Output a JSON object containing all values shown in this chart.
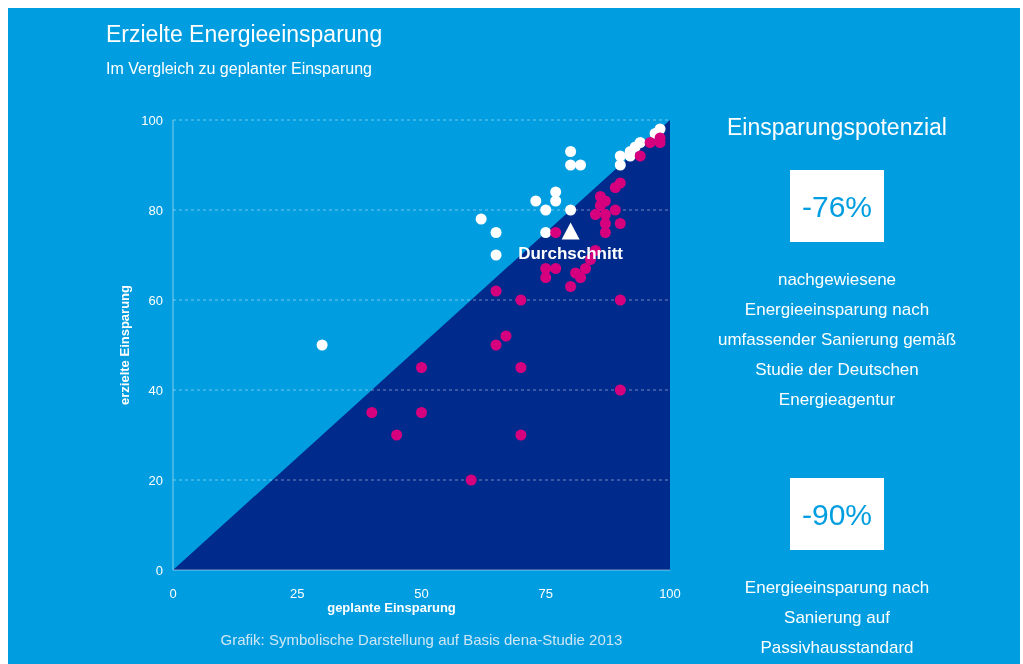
{
  "chart_data": [
    {
      "type": "scatter",
      "title": "Erzielte Energieeinsparung",
      "subtitle": "Im Vergleich zu geplanter Einsparung",
      "xlabel": "geplante Einsparung",
      "ylabel": "erzielte Einsparung",
      "xlim": [
        0,
        100
      ],
      "ylim": [
        0,
        100
      ],
      "xticks": [
        0,
        25,
        50,
        75,
        100
      ],
      "yticks": [
        0,
        20,
        40,
        60,
        80,
        100
      ],
      "grid": "y",
      "series": [
        {
          "type": "area",
          "color": "#002a8c",
          "x": [
            0,
            100
          ],
          "values": [
            0,
            100
          ]
        },
        {
          "color": "#ffffff",
          "marker": "circle",
          "x": [
            30,
            62,
            65,
            65,
            73,
            75,
            75,
            77,
            77,
            80,
            80,
            80,
            82,
            90,
            90,
            92,
            92,
            93,
            94,
            97,
            98
          ],
          "values": [
            50,
            78,
            75,
            70,
            82,
            80,
            75,
            84,
            82,
            80,
            93,
            90,
            90,
            90,
            92,
            92,
            93,
            94,
            95,
            97,
            98
          ]
        },
        {
          "color": "#d6007e",
          "marker": "circle",
          "x": [
            40,
            45,
            50,
            50,
            60,
            65,
            65,
            67,
            70,
            70,
            70,
            90,
            90,
            77,
            77,
            75,
            75,
            80,
            81,
            82,
            83,
            84,
            85,
            85,
            86,
            86,
            87,
            87,
            87,
            87,
            89,
            89,
            90,
            90,
            94,
            98,
            98,
            96
          ],
          "values": [
            35,
            30,
            45,
            35,
            20,
            62,
            50,
            52,
            60,
            45,
            30,
            60,
            40,
            75,
            67,
            67,
            65,
            63,
            66,
            65,
            67,
            69,
            71,
            79,
            83,
            81,
            82,
            79,
            77,
            75,
            80,
            85,
            86,
            77,
            92,
            96,
            95,
            95
          ]
        },
        {
          "name": "Durchschnitt",
          "color": "#ffffff",
          "marker": "triangle",
          "x": [
            80
          ],
          "values": [
            75
          ]
        }
      ],
      "annotations": [
        "Grafik: Symbolische Darstellung auf Basis dena-Studie 2013"
      ]
    },
    {
      "type": "other",
      "title": "Einsparungspotenzial",
      "annotations": [
        "-76%",
        "nachgewiesene Energieeinsparung nach umfassender Sanierung gemäß Studie der Deutschen Energieagentur",
        "-90%",
        "Energieeinsparung nach Sanierung auf Passivhausstandard"
      ]
    }
  ]
}
